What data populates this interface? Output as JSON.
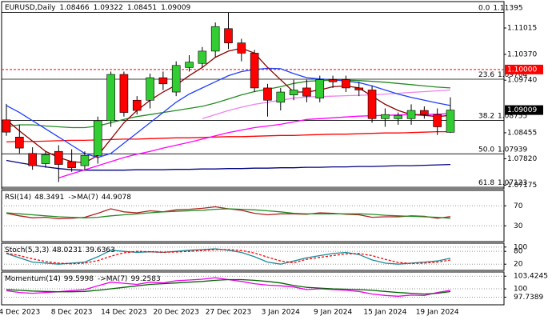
{
  "chart_data": [
    {
      "type": "candlestick",
      "title": "EURUSD,Daily",
      "categories": [
        null,
        "4 Dec 2023",
        null,
        null,
        null,
        "8 Dec 2023",
        null,
        null,
        null,
        "14 Dec 2023",
        null,
        null,
        null,
        "20 Dec 2023",
        null,
        null,
        null,
        "27 Dec 2023",
        null,
        null,
        null,
        "3 Jan 2024",
        null,
        null,
        null,
        "9 Jan 2024",
        null,
        null,
        null,
        "15 Jan 2024",
        null,
        null,
        null,
        "19 Jan 2024",
        null
      ],
      "open": [
        1.0877,
        1.0835,
        1.0795,
        1.077,
        1.08,
        1.0775,
        1.0765,
        1.079,
        1.0875,
        1.0988,
        1.0925,
        1.0925,
        1.098,
        1.0945,
        1.1005,
        1.1015,
        1.1045,
        1.11,
        1.1065,
        1.104,
        1.0955,
        1.092,
        1.0938,
        1.0955,
        1.093,
        1.0975,
        1.0975,
        1.0955,
        1.095,
        1.088,
        1.088,
        1.088,
        1.09,
        1.089,
        1.08466
      ],
      "high": [
        1.0916,
        1.0865,
        1.081,
        1.08,
        1.0815,
        1.0805,
        1.08,
        1.0885,
        1.0995,
        1.0995,
        1.0935,
        1.099,
        1.0995,
        1.102,
        1.1035,
        1.1055,
        1.1115,
        1.11395,
        1.1075,
        1.1048,
        1.0965,
        1.0955,
        1.0975,
        1.0975,
        1.0985,
        1.0985,
        1.0985,
        1.097,
        1.096,
        1.0905,
        1.0895,
        1.0915,
        1.091,
        1.0905,
        1.09322
      ],
      "low": [
        1.0838,
        1.0795,
        1.0755,
        1.076,
        1.0725,
        1.075,
        1.0755,
        1.077,
        1.086,
        1.0885,
        1.089,
        1.0905,
        1.095,
        1.0935,
        1.0995,
        1.1005,
        1.103,
        1.105,
        1.102,
        1.0945,
        1.0885,
        1.09,
        1.0925,
        1.092,
        1.092,
        1.0955,
        1.0945,
        1.0935,
        1.087,
        1.086,
        1.0865,
        1.0865,
        1.088,
        1.084,
        1.08451
      ],
      "close": [
        1.0847,
        1.0808,
        1.0765,
        1.0792,
        1.0768,
        1.076,
        1.079,
        1.0875,
        1.0988,
        1.0895,
        1.09,
        1.098,
        1.0965,
        1.101,
        1.1018,
        1.1045,
        1.1105,
        1.1065,
        1.104,
        1.0955,
        1.0925,
        1.0945,
        1.095,
        1.0935,
        1.0975,
        1.097,
        1.0955,
        1.095,
        1.088,
        1.089,
        1.0888,
        1.09,
        1.089,
        1.086,
        1.09009
      ],
      "up_color": "#32cd32",
      "down_color": "#ff0000",
      "series": [
        {
          "color": "#000080",
          "values": [
            1.0778,
            1.0772,
            1.0767,
            1.0762,
            1.0758,
            1.0755,
            1.0754,
            1.0754,
            1.0754,
            1.0754,
            1.0755,
            1.0755,
            1.0755,
            1.0756,
            1.0756,
            1.0757,
            1.0757,
            1.0758,
            1.0758,
            1.0759,
            1.0759,
            1.076,
            1.076,
            1.0761,
            1.0761,
            1.0762,
            1.0762,
            1.0763,
            1.0763,
            1.0764,
            1.0765,
            1.0765,
            1.0766,
            1.0767,
            1.0768
          ]
        },
        {
          "color": "#ff0000",
          "values": [
            1.0823,
            1.0824,
            1.0824,
            1.0825,
            1.0826,
            1.0827,
            1.0827,
            1.0828,
            1.0829,
            1.083,
            1.083,
            1.0831,
            1.0832,
            1.0833,
            1.0833,
            1.0834,
            1.0835,
            1.0836,
            1.0836,
            1.0837,
            1.0838,
            1.0839,
            1.0839,
            1.084,
            1.0841,
            1.0842,
            1.0842,
            1.0843,
            1.0844,
            1.0845,
            1.0845,
            1.0846,
            1.0847,
            1.0848,
            1.0848
          ]
        },
        {
          "color": "#ee82ee",
          "values": [
            null,
            null,
            null,
            null,
            null,
            null,
            null,
            null,
            null,
            null,
            null,
            null,
            null,
            null,
            null,
            1.088,
            1.089,
            1.09,
            1.0908,
            1.0915,
            1.092,
            1.0925,
            1.093,
            1.0933,
            1.0934,
            1.0935,
            1.0936,
            1.0937,
            1.0938,
            1.094,
            1.0942,
            1.0944,
            1.0946,
            1.0948,
            1.095
          ]
        },
        {
          "color": "#ff00ff",
          "values": [
            null,
            null,
            null,
            null,
            1.0735,
            1.0745,
            1.0755,
            1.0765,
            1.0775,
            1.0785,
            1.0793,
            1.08,
            1.0808,
            1.0815,
            1.0822,
            1.083,
            1.0838,
            1.0846,
            1.0852,
            1.0858,
            1.0862,
            1.0866,
            1.0872,
            1.0878,
            1.088,
            1.0882,
            1.0884,
            1.0886,
            1.0887,
            1.0888,
            1.0889,
            1.089,
            1.089,
            1.0891,
            1.0892
          ]
        },
        {
          "color": "#228b22",
          "values": [
            1.086,
            1.0865,
            1.0865,
            1.0862,
            1.086,
            1.0858,
            1.0858,
            1.0862,
            1.087,
            1.0878,
            1.0885,
            1.089,
            1.0895,
            1.09,
            1.0905,
            1.091,
            1.0918,
            1.0928,
            1.0938,
            1.0946,
            1.0952,
            1.0958,
            1.0966,
            1.0971,
            1.0973,
            1.0974,
            1.0974,
            1.0973,
            1.0971,
            1.0969,
            1.0966,
            1.0963,
            1.096,
            1.0957,
            1.0955
          ]
        },
        {
          "color": "#1f3fff",
          "values": [
            1.0912,
            1.0895,
            1.0875,
            1.0855,
            1.0835,
            1.0815,
            1.0795,
            1.0785,
            1.0795,
            1.082,
            1.0845,
            1.087,
            1.0895,
            1.092,
            1.094,
            1.0955,
            1.097,
            1.0985,
            1.0995,
            1.1,
            1.1003,
            1.1002,
            1.099,
            1.098,
            1.0977,
            1.0975,
            1.0972,
            1.0968,
            1.096,
            1.095,
            1.094,
            1.0932,
            1.0925,
            1.0918,
            1.0912
          ]
        },
        {
          "color": "#8b0000",
          "values": [
            1.0877,
            1.085,
            1.0825,
            1.08,
            1.0785,
            1.0775,
            1.0772,
            1.079,
            1.083,
            1.087,
            1.09,
            1.0925,
            1.0945,
            1.0962,
            1.0985,
            1.1005,
            1.103,
            1.1045,
            1.1052,
            1.104,
            1.1005,
            1.0975,
            1.0945,
            1.0945,
            1.095,
            1.0958,
            1.096,
            1.0955,
            1.0935,
            1.0915,
            1.09,
            1.089,
            1.0888,
            1.0885,
            1.0888
          ]
        }
      ],
      "ylim": [
        1.07085,
        1.1166
      ],
      "yticks": [
        1.11015,
        {
          "value": 1.1037,
          "label": "1.10370"
        },
        {
          "value": 1.0974,
          "label": "1.09740"
        },
        1.08455,
        {
          "value": 1.0782,
          "label": "1.07820"
        },
        1.07175
      ],
      "levels": [
        {
          "value": 1.1,
          "label": "1.10000",
          "color": "#ff0000"
        }
      ],
      "fib": [
        {
          "level": "0.0",
          "value": 1.11395
        },
        {
          "level": "23.6",
          "value": 1.09764
        },
        {
          "level": "38.2",
          "value": 1.08755
        },
        {
          "level": "50.0",
          "value": 1.07939
        },
        {
          "level": "61.8",
          "value": 1.07123
        }
      ]
    },
    {
      "type": "line",
      "series": [
        {
          "name": "RSI(14)",
          "color": "#b22222",
          "values": [
            55,
            50,
            46,
            47,
            44,
            45,
            47,
            55,
            64,
            58,
            56,
            60,
            58,
            62,
            63,
            65,
            68,
            64,
            61,
            55,
            52,
            54,
            54,
            53,
            56,
            55,
            53,
            52,
            47,
            48,
            48,
            50,
            49,
            45,
            48.3491
          ]
        },
        {
          "name": "->MA(7)",
          "color": "#228b22",
          "values": [
            56,
            54,
            52,
            50,
            48,
            47,
            46,
            47,
            50,
            52,
            54,
            56,
            58,
            59,
            60,
            61,
            63,
            64,
            63,
            62,
            60,
            58,
            55,
            54,
            54,
            54,
            54,
            54,
            53,
            51,
            50,
            49,
            48,
            47,
            44.9078
          ]
        }
      ],
      "ylim": [
        -1.6,
        100.8
      ],
      "yticks": [
        30,
        70
      ],
      "grid": true
    },
    {
      "type": "line",
      "series": [
        {
          "name": "Stoch(5,3,3)",
          "color": "#1a8a9a",
          "values": [
            70,
            50,
            30,
            25,
            20,
            25,
            30,
            55,
            85,
            80,
            75,
            78,
            75,
            80,
            85,
            88,
            92,
            85,
            75,
            55,
            30,
            20,
            35,
            50,
            60,
            70,
            75,
            65,
            40,
            25,
            20,
            25,
            30,
            35,
            48.0231
          ]
        },
        {
          "color": "#ff0000",
          "dash": true,
          "values": [
            72,
            60,
            45,
            32,
            25,
            22,
            25,
            37,
            57,
            73,
            80,
            78,
            76,
            77,
            80,
            84,
            88,
            88,
            84,
            72,
            53,
            35,
            27,
            43,
            52,
            60,
            68,
            70,
            60,
            43,
            28,
            23,
            25,
            30,
            39.6363
          ]
        }
      ],
      "ylim": [
        -9,
        118
      ],
      "yticks": [
        20,
        80,
        100
      ],
      "grid": true
    },
    {
      "type": "line",
      "series": [
        {
          "name": "Momentum(14)",
          "color": "#ee00ee",
          "values": [
            99.5,
            99.0,
            98.8,
            99.0,
            99.2,
            99.5,
            99.8,
            100.8,
            101.8,
            101.5,
            101.2,
            101.8,
            101.6,
            102.2,
            102.4,
            102.6,
            103.0,
            102.5,
            102.0,
            101.4,
            101.0,
            100.8,
            100.5,
            99.8,
            100.0,
            99.8,
            99.6,
            99.3,
            98.6,
            98.2,
            98.0,
            98.3,
            98.2,
            99.0,
            99.5998
          ]
        },
        {
          "name": "->MA(7)",
          "color": "#006400",
          "values": [
            99.8,
            99.6,
            99.4,
            99.3,
            99.2,
            99.2,
            99.3,
            99.6,
            100.0,
            100.4,
            100.8,
            101.2,
            101.4,
            101.6,
            101.8,
            102.0,
            102.3,
            102.5,
            102.5,
            102.3,
            102.0,
            101.6,
            100.9,
            100.4,
            100.2,
            100.0,
            99.9,
            99.8,
            99.6,
            99.3,
            99.0,
            98.8,
            98.6,
            98.8,
            99.2583
          ]
        }
      ],
      "ylim": [
        95.67,
        104.56
      ],
      "yticks": [
        97.7389,
        100,
        103.4245
      ],
      "grid": true
    }
  ]
}
